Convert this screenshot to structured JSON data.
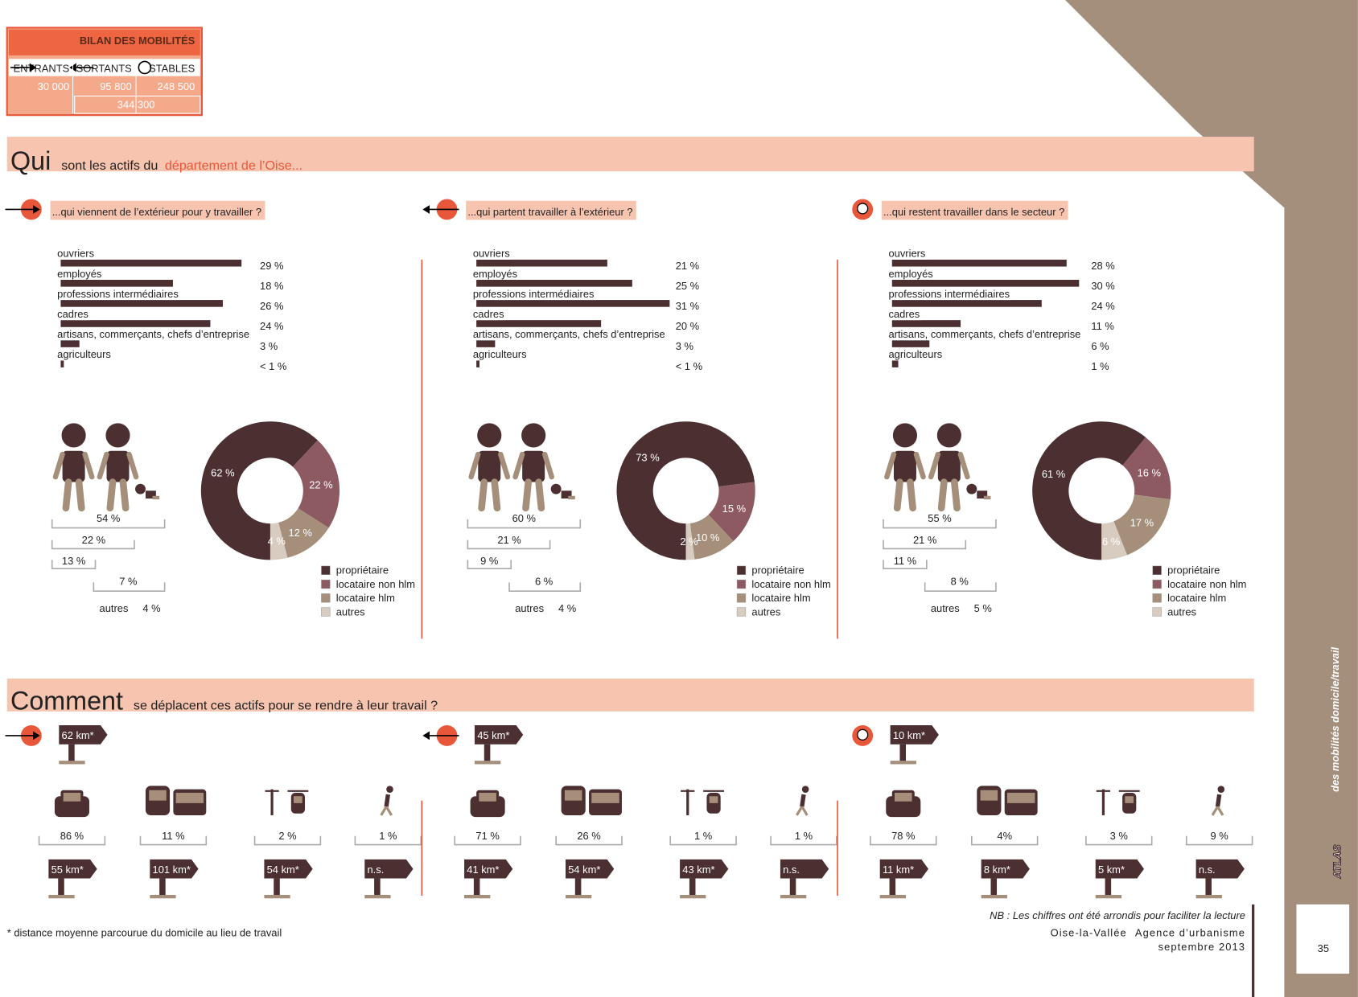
{
  "bilan": {
    "title": "BILAN DES MOBILITÉS",
    "columns": [
      "ENTRANTS",
      "SORTANTS",
      "STABLES"
    ],
    "values": [
      "30 000",
      "95 800",
      "248 500"
    ],
    "total": "344 300"
  },
  "section1": {
    "title": "Qui",
    "text": "sont les actifs du",
    "highlight": "département de l’Oise..."
  },
  "panels": [
    {
      "question": "...qui viennent de l’extérieur pour y travailler ?",
      "csp": {
        "categories": [
          "ouvriers",
          "employés",
          "professions intermédiaires",
          "cadres",
          "artisans, commerçants, chefs d’entreprise",
          "agriculteurs"
        ],
        "values": [
          29,
          18,
          26,
          24,
          3,
          0.5
        ],
        "value_labels": [
          "29 %",
          "18 %",
          "26 %",
          "24 %",
          "3 %",
          "< 1 %"
        ]
      },
      "household": [
        "54 %",
        "22 %",
        "13 %",
        "7 %"
      ],
      "others_label": "autres",
      "others": "4 %",
      "housing": {
        "values": [
          62,
          22,
          12,
          4
        ],
        "value_labels": [
          "62 %",
          "22 %",
          "12 %",
          "4 %"
        ]
      }
    },
    {
      "question": "...qui partent travailler à l’extérieur ?",
      "csp": {
        "categories": [
          "ouvriers",
          "employés",
          "professions intermédiaires",
          "cadres",
          "artisans, commerçants, chefs d’entreprise",
          "agriculteurs"
        ],
        "values": [
          21,
          25,
          31,
          20,
          3,
          0.5
        ],
        "value_labels": [
          "21 %",
          "25 %",
          "31 %",
          "20 %",
          "3 %",
          "< 1 %"
        ]
      },
      "household": [
        "60 %",
        "21 %",
        "9 %",
        "6 %"
      ],
      "others_label": "autres",
      "others": "4 %",
      "housing": {
        "values": [
          73,
          15,
          10,
          2
        ],
        "value_labels": [
          "73 %",
          "15 %",
          "10 %",
          "2 %"
        ]
      }
    },
    {
      "question": "...qui restent travailler dans le secteur ?",
      "csp": {
        "categories": [
          "ouvriers",
          "employés",
          "professions intermédiaires",
          "cadres",
          "artisans, commerçants, chefs d’entreprise",
          "agriculteurs"
        ],
        "values": [
          28,
          30,
          24,
          11,
          6,
          1
        ],
        "value_labels": [
          "28 %",
          "30 %",
          "24 %",
          "11 %",
          "6 %",
          "1 %"
        ]
      },
      "household": [
        "55 %",
        "21 %",
        "11 %",
        "8 %"
      ],
      "others_label": "autres",
      "others": "5 %",
      "housing": {
        "values": [
          61,
          16,
          17,
          6
        ],
        "value_labels": [
          "61 %",
          "16 %",
          "17 %",
          "6 %"
        ]
      }
    }
  ],
  "housing_legend": {
    "categories": [
      "propriétaire",
      "locataire non hlm",
      "locataire hlm",
      "autres"
    ],
    "colors": [
      "#4b2f31",
      "#8e5a62",
      "#a58f7a",
      "#d8ccc0"
    ]
  },
  "section2": {
    "title": "Comment",
    "text": "se déplacent ces actifs pour se rendre à leur travail ?"
  },
  "transport": [
    {
      "distance": "62 km*",
      "shares": [
        "86 %",
        "11 %",
        "2 %",
        "1 %"
      ],
      "distances": [
        "55 km*",
        "101 km*",
        "54 km*",
        "n.s."
      ]
    },
    {
      "distance": "45 km*",
      "shares": [
        "71 %",
        "26 %",
        "1 %",
        "1 %"
      ],
      "distances": [
        "41 km*",
        "54 km*",
        "43 km*",
        "n.s."
      ]
    },
    {
      "distance": "10 km*",
      "shares": [
        "78 %",
        "4%",
        "3 %",
        "9 %"
      ],
      "distances": [
        "11 km*",
        "8 km*",
        "5 km*",
        "n.s."
      ]
    }
  ],
  "footnote": "* distance moyenne parcourue du domicile au lieu de travail",
  "nb": "NB : Les chiffres ont été arrondis pour faciliter la lecture",
  "publisher": "Oise-la-Vallée",
  "agency": "Agence d’urbanisme",
  "date": "septembre 2013",
  "page": "35",
  "atlas": "ATLAS",
  "atlas_subtitle": "des mobilités domicile/travail"
}
